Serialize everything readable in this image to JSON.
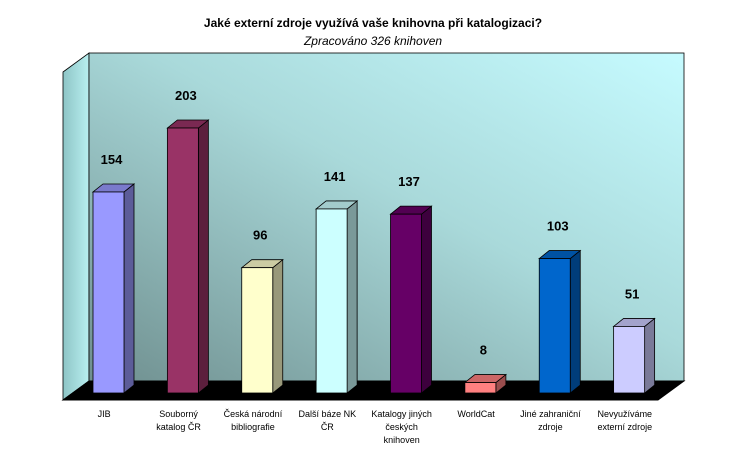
{
  "chart_data": {
    "type": "bar",
    "title": "Jaké externí zdroje využívá vaše knihovna při katalogizaci?",
    "subtitle": "Zpracováno 326 knihoven",
    "categories": [
      [
        "JIB"
      ],
      [
        "Souborný",
        "katalog ČR"
      ],
      [
        "Česká národní",
        "bibliografie"
      ],
      [
        "Další báze NK",
        "ČR"
      ],
      [
        "Katalogy jiných",
        "českých",
        "knihoven"
      ],
      [
        "WorldCat"
      ],
      [
        "Jiné zahraniční",
        "zdroje"
      ],
      [
        "Nevyužíváme",
        "externí zdroje"
      ]
    ],
    "values": [
      154,
      203,
      96,
      141,
      137,
      8,
      103,
      51
    ],
    "colors": [
      "#9999ff",
      "#993366",
      "#ffffcc",
      "#ccffff",
      "#660066",
      "#ff8080",
      "#0066cc",
      "#ccccff"
    ],
    "ylim": [
      0,
      220
    ],
    "grid": false,
    "legend": "none",
    "style": "3d-column"
  }
}
